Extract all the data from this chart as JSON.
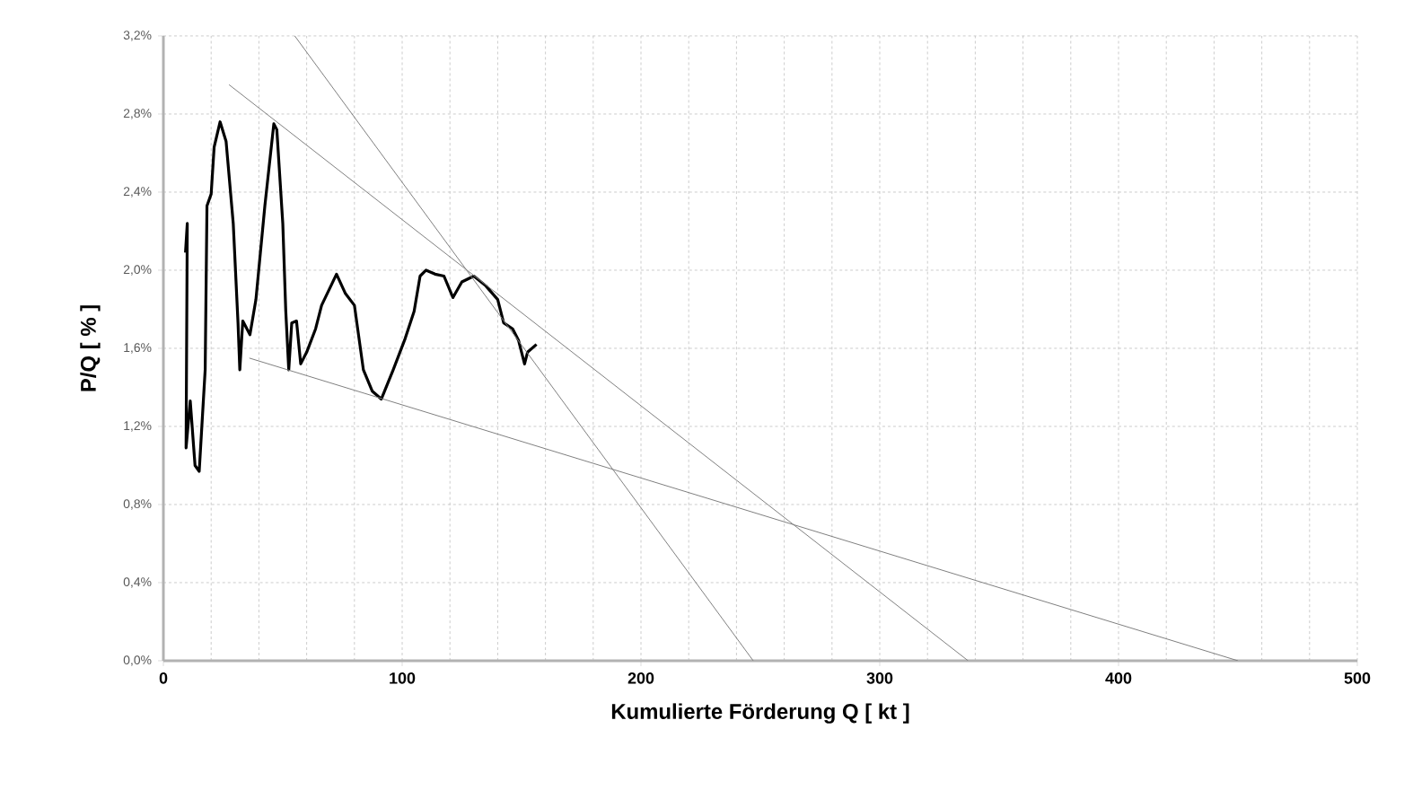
{
  "chart_data": {
    "type": "line",
    "xlabel": "Kumulierte Förderung Q  [ kt ]",
    "ylabel": "P/Q [ % ]",
    "xlim": [
      0,
      500
    ],
    "ylim": [
      0,
      3.2
    ],
    "xticks": [
      0,
      100,
      200,
      300,
      400,
      500
    ],
    "yticks": [
      {
        "value": 0,
        "label": "0,0%"
      },
      {
        "value": 0.4,
        "label": "0,4%"
      },
      {
        "value": 0.8,
        "label": "0,8%"
      },
      {
        "value": 1.2,
        "label": "1,2%"
      },
      {
        "value": 1.6,
        "label": "1,6%"
      },
      {
        "value": 2.0,
        "label": "2,0%"
      },
      {
        "value": 2.4,
        "label": "2,4%"
      },
      {
        "value": 2.8,
        "label": "2,8%"
      },
      {
        "value": 3.2,
        "label": "3,2%"
      }
    ],
    "grid": true,
    "marker": "none",
    "line_style": "solid",
    "series": [
      {
        "color": "#000000",
        "x": [
          9.25,
          10,
          9.5,
          11.25,
          13.25,
          15,
          17.5,
          18.25,
          20,
          21.25,
          23.75,
          26.25,
          29.25,
          31.25,
          32,
          33.25,
          36.25,
          38.75,
          42.5,
          46.25,
          47.5,
          50,
          51.25,
          52.5,
          53.75,
          55.75,
          57.5,
          60,
          63.75,
          66.25,
          72.5,
          76.25,
          80,
          83.75,
          87.5,
          91.25,
          96.25,
          101.25,
          105,
          107.5,
          110,
          113.75,
          117.5,
          121.25,
          125,
          130,
          135,
          140,
          142.5,
          146.25,
          148.75,
          151.25,
          152.5,
          156.25
        ],
        "values": [
          2.09,
          2.24,
          1.09,
          1.33,
          1.0,
          0.97,
          1.49,
          2.33,
          2.39,
          2.63,
          2.76,
          2.66,
          2.24,
          1.73,
          1.49,
          1.74,
          1.67,
          1.85,
          2.33,
          2.75,
          2.72,
          2.24,
          1.79,
          1.49,
          1.73,
          1.74,
          1.52,
          1.58,
          1.7,
          1.82,
          1.98,
          1.88,
          1.82,
          1.49,
          1.38,
          1.34,
          1.49,
          1.65,
          1.79,
          1.97,
          2.0,
          1.98,
          1.97,
          1.86,
          1.94,
          1.97,
          1.92,
          1.85,
          1.73,
          1.7,
          1.64,
          1.52,
          1.58,
          1.62
        ]
      },
      {
        "color": "#808080",
        "x": [
          55,
          247
        ],
        "values": [
          3.2,
          0
        ]
      },
      {
        "color": "#808080",
        "x": [
          27.5,
          337
        ],
        "values": [
          2.95,
          0
        ]
      },
      {
        "color": "#808080",
        "x": [
          36,
          450
        ],
        "values": [
          1.55,
          0
        ]
      }
    ]
  }
}
